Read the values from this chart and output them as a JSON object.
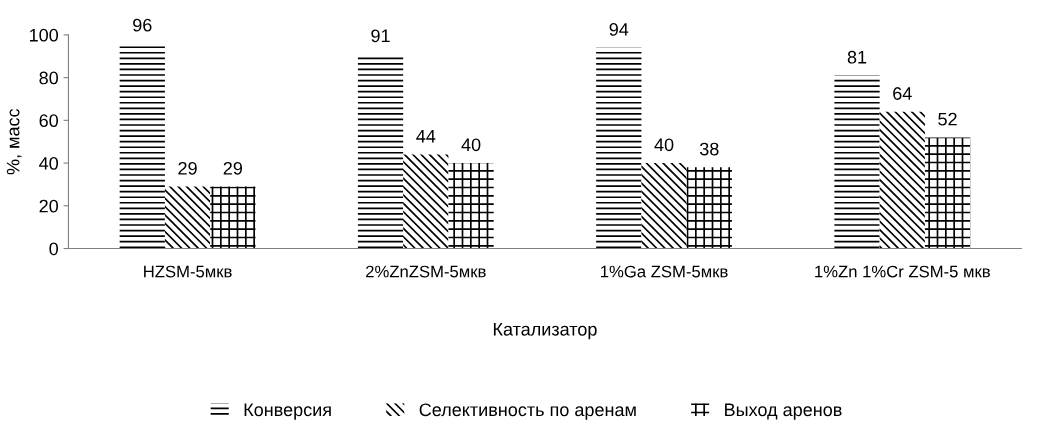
{
  "chart_data": {
    "type": "bar",
    "xlabel": "Катализатор",
    "ylabel": "%, масс",
    "categories": [
      "HZSM-5мкв",
      "2%ZnZSM-5мкв",
      "1%Ga ZSM-5мкв",
      "1%Zn 1%Cr ZSM-5 мкв"
    ],
    "series": [
      {
        "name": "Конверсия",
        "color": "#000000",
        "values": [
          96,
          91,
          94,
          81
        ]
      },
      {
        "name": "Селективность по аренам",
        "color": "#000000",
        "values": [
          29,
          44,
          40,
          64
        ]
      },
      {
        "name": "Выход аренов",
        "color": "#000000",
        "values": [
          29,
          40,
          38,
          52
        ]
      }
    ],
    "ylim": [
      0,
      100
    ],
    "yticks": [
      0,
      20,
      40,
      60,
      80,
      100
    ],
    "grid": false,
    "legend": "bottom",
    "data_labels": true
  }
}
